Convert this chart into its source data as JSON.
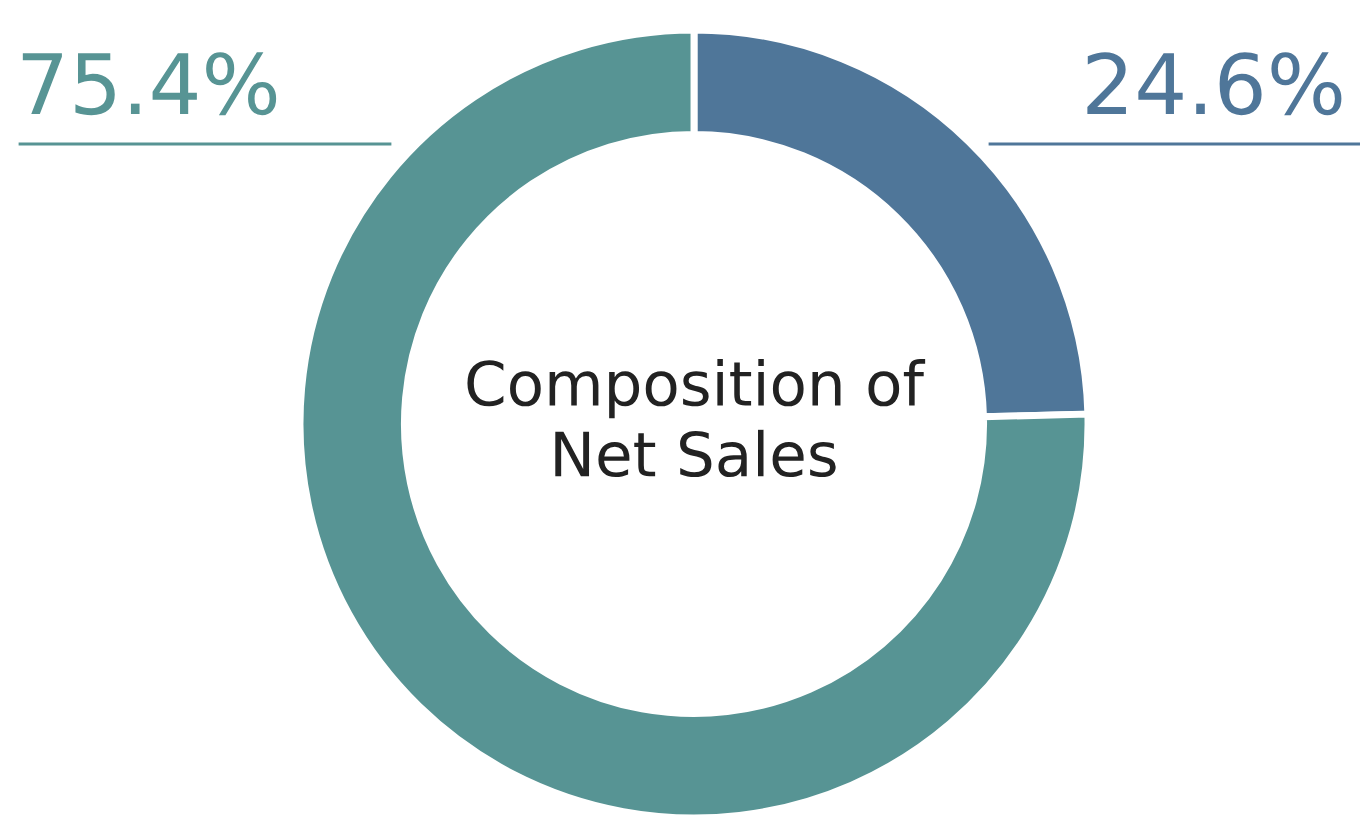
{
  "chart_data": {
    "type": "donut",
    "title": "Composition of\nNet Sales",
    "categories": [
      null,
      null
    ],
    "values": [
      24.6,
      75.4
    ],
    "colors": [
      "#4f7699",
      "#579494"
    ],
    "value_labels": [
      "24.6%",
      "75.4%"
    ],
    "legend": false
  }
}
